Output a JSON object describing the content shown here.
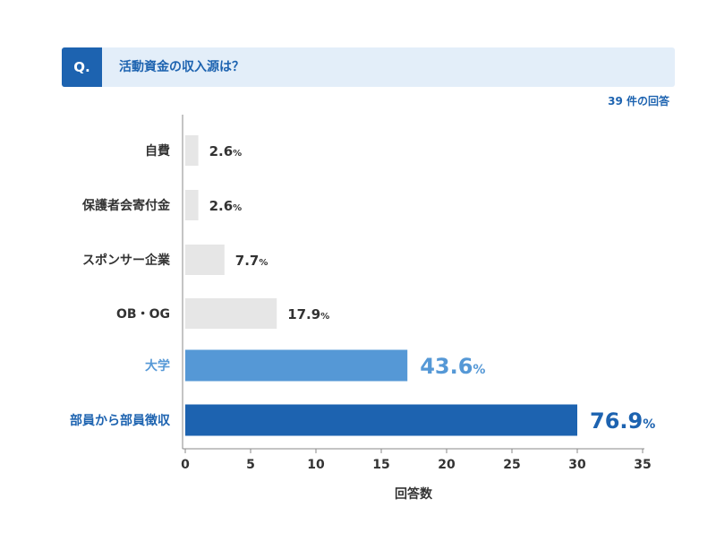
{
  "question": {
    "badge": "Q.",
    "text": "活動資金の収入源は？"
  },
  "response_count": "39 件の回答",
  "colors": {
    "accent": "#1d63b0",
    "highlight": "#5598d6",
    "muted_bar": "#e6e6e6",
    "label": "#333333"
  },
  "chart_data": {
    "type": "bar",
    "orientation": "horizontal",
    "categories": [
      "自費",
      "保護者会寄付金",
      "スポンサー企業",
      "OB・OG",
      "大学",
      "部員から部員徴収"
    ],
    "values": [
      1,
      1,
      3,
      7,
      17,
      30
    ],
    "percent_labels": [
      "2.6",
      "2.6",
      "7.7",
      "17.9",
      "43.6",
      "76.9"
    ],
    "percent_unit": "%",
    "xlabel": "回答数",
    "ylabel": "",
    "xlim": [
      0,
      35
    ],
    "xticks": [
      0,
      5,
      10,
      15,
      20,
      25,
      30,
      35
    ],
    "highlight": [
      "normal",
      "normal",
      "normal",
      "normal",
      "medium",
      "strong"
    ]
  }
}
